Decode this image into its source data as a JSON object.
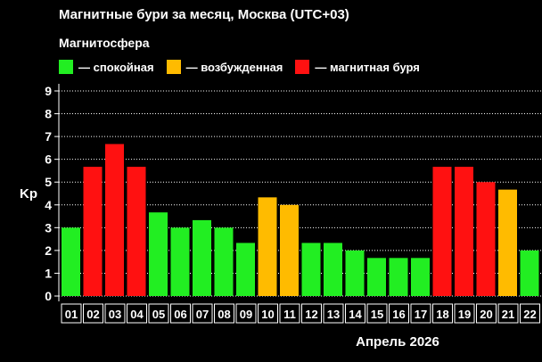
{
  "header": {
    "title": "Магнитные бури за месяц, Москва (UTC+03)",
    "subtitle": "Магнитосфера"
  },
  "legend": [
    {
      "label": "— спокойная",
      "color": "#22ee22"
    },
    {
      "label": "— возбужденная",
      "color": "#ffbb00"
    },
    {
      "label": "— магнитная буря",
      "color": "#ff1111"
    }
  ],
  "chart_data": {
    "type": "bar",
    "title": "Магнитные бури за месяц, Москва (UTC+03)",
    "ylabel": "Kp",
    "xlabel": "Апрель 2026",
    "ylim": [
      0,
      9
    ],
    "yticks": [
      "0",
      "1",
      "2",
      "3",
      "4",
      "5",
      "6",
      "7",
      "8",
      "9"
    ],
    "categories": [
      "01",
      "02",
      "03",
      "04",
      "05",
      "06",
      "07",
      "08",
      "09",
      "10",
      "11",
      "12",
      "13",
      "14",
      "15",
      "16",
      "17",
      "18",
      "19",
      "20",
      "21",
      "22"
    ],
    "values": [
      3.0,
      5.67,
      6.67,
      5.67,
      3.67,
      3.0,
      3.33,
      3.0,
      2.33,
      4.33,
      4.0,
      2.33,
      2.33,
      2.0,
      1.67,
      1.67,
      1.67,
      5.67,
      5.67,
      5.0,
      4.67,
      2.0
    ],
    "levels": [
      "calm",
      "storm",
      "storm",
      "storm",
      "calm",
      "calm",
      "calm",
      "calm",
      "calm",
      "excited",
      "excited",
      "calm",
      "calm",
      "calm",
      "calm",
      "calm",
      "calm",
      "storm",
      "storm",
      "storm",
      "excited",
      "calm"
    ],
    "colors": {
      "calm": "#22ee22",
      "excited": "#ffbb00",
      "storm": "#ff1111"
    },
    "grid": true
  }
}
